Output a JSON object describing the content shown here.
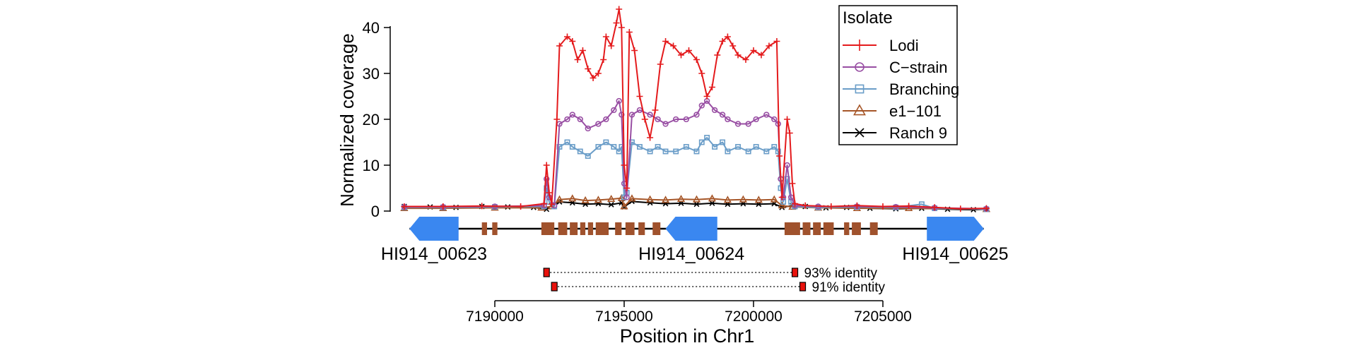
{
  "chart_data": {
    "type": "line",
    "ylabel": "Normalized coverage",
    "xlabel": "Position in Chr1",
    "ylim": [
      0,
      42
    ],
    "xlim": [
      7186500,
      7209000
    ],
    "y_ticks": [
      "0",
      "10",
      "20",
      "30",
      "40"
    ],
    "x_ticks": [
      "7190000",
      "7195000",
      "7200000",
      "7205000"
    ],
    "legend": {
      "title": "Isolate",
      "placement": "top-right",
      "entries": [
        {
          "label": "Lodi",
          "color": "#e41a1c",
          "marker": "+"
        },
        {
          "label": "C−strain",
          "color": "#984ea3",
          "marker": "o"
        },
        {
          "label": "Branching",
          "color": "#6a9dc8",
          "marker": "s"
        },
        {
          "label": "e1−101",
          "color": "#a65628",
          "marker": "^"
        },
        {
          "label": "Ranch  9",
          "color": "#000000",
          "marker": "x"
        }
      ]
    },
    "series": [
      {
        "name": "Lodi",
        "color": "#e41a1c",
        "marker": "+",
        "points": [
          [
            7186500,
            1.0
          ],
          [
            7188000,
            1.0
          ],
          [
            7189500,
            1.1
          ],
          [
            7191000,
            1.0
          ],
          [
            7191900,
            1.6
          ],
          [
            7192000,
            10
          ],
          [
            7192100,
            4
          ],
          [
            7192200,
            1.5
          ],
          [
            7192400,
            20
          ],
          [
            7192500,
            36
          ],
          [
            7192800,
            38
          ],
          [
            7193000,
            37
          ],
          [
            7193200,
            33
          ],
          [
            7193400,
            35
          ],
          [
            7193600,
            31
          ],
          [
            7193800,
            29
          ],
          [
            7194000,
            30
          ],
          [
            7194200,
            33
          ],
          [
            7194300,
            38
          ],
          [
            7194500,
            36
          ],
          [
            7194700,
            41
          ],
          [
            7194800,
            44
          ],
          [
            7194900,
            40
          ],
          [
            7195000,
            10
          ],
          [
            7195100,
            5
          ],
          [
            7195200,
            39
          ],
          [
            7195400,
            35
          ],
          [
            7195600,
            25
          ],
          [
            7195800,
            20
          ],
          [
            7196000,
            16
          ],
          [
            7196200,
            22
          ],
          [
            7196400,
            32
          ],
          [
            7196600,
            37
          ],
          [
            7196900,
            36
          ],
          [
            7197200,
            34
          ],
          [
            7197500,
            35
          ],
          [
            7197800,
            33
          ],
          [
            7198000,
            30
          ],
          [
            7198200,
            25
          ],
          [
            7198400,
            27
          ],
          [
            7198600,
            34
          ],
          [
            7198800,
            37
          ],
          [
            7199000,
            38
          ],
          [
            7199200,
            36
          ],
          [
            7199400,
            34
          ],
          [
            7199700,
            33
          ],
          [
            7200000,
            35
          ],
          [
            7200300,
            34
          ],
          [
            7200600,
            36
          ],
          [
            7200900,
            37
          ],
          [
            7201000,
            12
          ],
          [
            7201100,
            3
          ],
          [
            7201300,
            20
          ],
          [
            7201400,
            17
          ],
          [
            7201500,
            6
          ],
          [
            7201600,
            1.6
          ],
          [
            7202000,
            1.2
          ],
          [
            7203000,
            1.0
          ],
          [
            7204000,
            1.2
          ],
          [
            7205000,
            1.0
          ],
          [
            7206000,
            1.1
          ],
          [
            7207000,
            0.8
          ],
          [
            7208000,
            0.5
          ],
          [
            7209000,
            0.6
          ]
        ]
      },
      {
        "name": "C−strain",
        "color": "#984ea3",
        "marker": "o",
        "points": [
          [
            7186500,
            0.9
          ],
          [
            7188000,
            0.9
          ],
          [
            7190000,
            1.0
          ],
          [
            7191900,
            1.2
          ],
          [
            7192000,
            7
          ],
          [
            7192100,
            3
          ],
          [
            7192300,
            1.2
          ],
          [
            7192500,
            19
          ],
          [
            7192800,
            20
          ],
          [
            7193000,
            21
          ],
          [
            7193300,
            20
          ],
          [
            7193600,
            18
          ],
          [
            7194000,
            19
          ],
          [
            7194300,
            20
          ],
          [
            7194600,
            22
          ],
          [
            7194800,
            24
          ],
          [
            7194900,
            21
          ],
          [
            7195000,
            6
          ],
          [
            7195100,
            3
          ],
          [
            7195300,
            21
          ],
          [
            7195600,
            22
          ],
          [
            7196000,
            21
          ],
          [
            7196300,
            20
          ],
          [
            7196600,
            19
          ],
          [
            7197000,
            20
          ],
          [
            7197400,
            20
          ],
          [
            7197800,
            21
          ],
          [
            7198000,
            23
          ],
          [
            7198200,
            24
          ],
          [
            7198500,
            22
          ],
          [
            7198800,
            21
          ],
          [
            7199000,
            20
          ],
          [
            7199400,
            19
          ],
          [
            7199800,
            19
          ],
          [
            7200100,
            20
          ],
          [
            7200500,
            21
          ],
          [
            7200800,
            20
          ],
          [
            7200950,
            19
          ],
          [
            7201050,
            7
          ],
          [
            7201150,
            3
          ],
          [
            7201300,
            10
          ],
          [
            7201450,
            3
          ],
          [
            7201600,
            1.2
          ],
          [
            7202500,
            1.0
          ],
          [
            7204000,
            1.0
          ],
          [
            7205500,
            0.9
          ],
          [
            7207000,
            0.7
          ],
          [
            7209000,
            0.5
          ]
        ]
      },
      {
        "name": "Branching",
        "color": "#6a9dc8",
        "marker": "s",
        "points": [
          [
            7186500,
            0.8
          ],
          [
            7188000,
            0.8
          ],
          [
            7190000,
            0.9
          ],
          [
            7191900,
            1.0
          ],
          [
            7192000,
            5
          ],
          [
            7192100,
            2
          ],
          [
            7192300,
            1.0
          ],
          [
            7192500,
            14
          ],
          [
            7192800,
            15
          ],
          [
            7193000,
            14
          ],
          [
            7193300,
            13
          ],
          [
            7193600,
            12
          ],
          [
            7194000,
            14
          ],
          [
            7194300,
            15
          ],
          [
            7194600,
            14
          ],
          [
            7194800,
            13
          ],
          [
            7194900,
            14
          ],
          [
            7195000,
            3
          ],
          [
            7195100,
            4
          ],
          [
            7195300,
            15
          ],
          [
            7195600,
            14
          ],
          [
            7196000,
            13
          ],
          [
            7196300,
            14
          ],
          [
            7196600,
            13
          ],
          [
            7197000,
            13
          ],
          [
            7197400,
            14
          ],
          [
            7197800,
            13
          ],
          [
            7198000,
            15
          ],
          [
            7198200,
            16
          ],
          [
            7198500,
            14
          ],
          [
            7198800,
            15
          ],
          [
            7199000,
            13
          ],
          [
            7199400,
            14
          ],
          [
            7199800,
            13
          ],
          [
            7200100,
            14
          ],
          [
            7200500,
            13
          ],
          [
            7200800,
            14
          ],
          [
            7200950,
            13
          ],
          [
            7201050,
            5
          ],
          [
            7201150,
            2
          ],
          [
            7201300,
            7
          ],
          [
            7201450,
            2
          ],
          [
            7201600,
            1.0
          ],
          [
            7202500,
            0.8
          ],
          [
            7204000,
            0.9
          ],
          [
            7205500,
            0.8
          ],
          [
            7206500,
            1.5
          ],
          [
            7207000,
            0.6
          ],
          [
            7209000,
            0.4
          ]
        ]
      },
      {
        "name": "e1−101",
        "color": "#a65628",
        "marker": "^",
        "points": [
          [
            7186500,
            0.6
          ],
          [
            7188000,
            0.6
          ],
          [
            7190000,
            0.7
          ],
          [
            7191800,
            0.7
          ],
          [
            7192200,
            1.0
          ],
          [
            7192500,
            2.5
          ],
          [
            7193000,
            2.7
          ],
          [
            7193500,
            2.3
          ],
          [
            7194000,
            2.4
          ],
          [
            7194500,
            2.6
          ],
          [
            7194900,
            2.8
          ],
          [
            7195000,
            1.0
          ],
          [
            7195300,
            2.7
          ],
          [
            7196000,
            2.5
          ],
          [
            7196600,
            2.4
          ],
          [
            7197200,
            2.6
          ],
          [
            7197800,
            2.5
          ],
          [
            7198400,
            2.7
          ],
          [
            7199000,
            2.4
          ],
          [
            7199600,
            2.5
          ],
          [
            7200200,
            2.4
          ],
          [
            7200800,
            2.5
          ],
          [
            7201100,
            1.2
          ],
          [
            7201500,
            0.9
          ],
          [
            7202500,
            0.7
          ],
          [
            7204000,
            0.6
          ],
          [
            7206000,
            0.6
          ],
          [
            7209000,
            0.4
          ]
        ]
      },
      {
        "name": "Ranch  9",
        "color": "#000000",
        "marker": "x",
        "points": [
          [
            7186500,
            1.0
          ],
          [
            7187500,
            0.9
          ],
          [
            7188500,
            0.8
          ],
          [
            7189500,
            1.0
          ],
          [
            7190500,
            0.9
          ],
          [
            7191500,
            0.8
          ],
          [
            7192000,
            0.4
          ],
          [
            7192200,
            1.3
          ],
          [
            7192500,
            2.0
          ],
          [
            7193000,
            1.8
          ],
          [
            7193500,
            1.5
          ],
          [
            7194000,
            1.6
          ],
          [
            7194500,
            1.4
          ],
          [
            7194900,
            1.8
          ],
          [
            7195000,
            0.9
          ],
          [
            7195300,
            2.1
          ],
          [
            7196000,
            1.8
          ],
          [
            7196600,
            1.6
          ],
          [
            7197200,
            1.7
          ],
          [
            7197800,
            1.5
          ],
          [
            7198400,
            1.7
          ],
          [
            7199000,
            1.5
          ],
          [
            7199600,
            1.6
          ],
          [
            7200200,
            1.5
          ],
          [
            7200800,
            1.6
          ],
          [
            7201100,
            0.8
          ],
          [
            7201500,
            1.2
          ],
          [
            7202000,
            1.0
          ],
          [
            7202800,
            0.7
          ],
          [
            7203600,
            0.8
          ],
          [
            7204500,
            0.6
          ],
          [
            7205500,
            0.5
          ],
          [
            7206500,
            0.6
          ],
          [
            7207500,
            0.4
          ],
          [
            7208500,
            0.3
          ],
          [
            7209000,
            0.4
          ]
        ]
      }
    ],
    "gene_track": {
      "line_range": [
        7186700,
        7208900
      ],
      "genes": [
        {
          "label": "HI914_00623",
          "start": 7186700,
          "end": 7188600,
          "strand": "-",
          "color": "#3a87f0"
        },
        {
          "label": "HI914_00624",
          "start": 7196600,
          "end": 7198600,
          "strand": "-",
          "color": "#3a87f0"
        },
        {
          "label": "HI914_00625",
          "start": 7206700,
          "end": 7208900,
          "strand": "+",
          "color": "#3a87f0"
        }
      ],
      "repeat_color": "#a0522d",
      "repeat_blocks": [
        [
          7189500,
          7189700
        ],
        [
          7189900,
          7190100
        ],
        [
          7191800,
          7192300
        ],
        [
          7192450,
          7192800
        ],
        [
          7192900,
          7193200
        ],
        [
          7193300,
          7193500
        ],
        [
          7193600,
          7193800
        ],
        [
          7193900,
          7194400
        ],
        [
          7194650,
          7194900
        ],
        [
          7195050,
          7195400
        ],
        [
          7195550,
          7195800
        ],
        [
          7196100,
          7196400
        ],
        [
          7201200,
          7201800
        ],
        [
          7201900,
          7202200
        ],
        [
          7202300,
          7202600
        ],
        [
          7202700,
          7203100
        ],
        [
          7203500,
          7203700
        ],
        [
          7203800,
          7204150
        ],
        [
          7204500,
          7204800
        ]
      ]
    },
    "duplications": [
      {
        "left": 7192000,
        "right": 7201600,
        "label": "93% identity"
      },
      {
        "left": 7192300,
        "right": 7201900,
        "label": "91% identity"
      }
    ]
  }
}
